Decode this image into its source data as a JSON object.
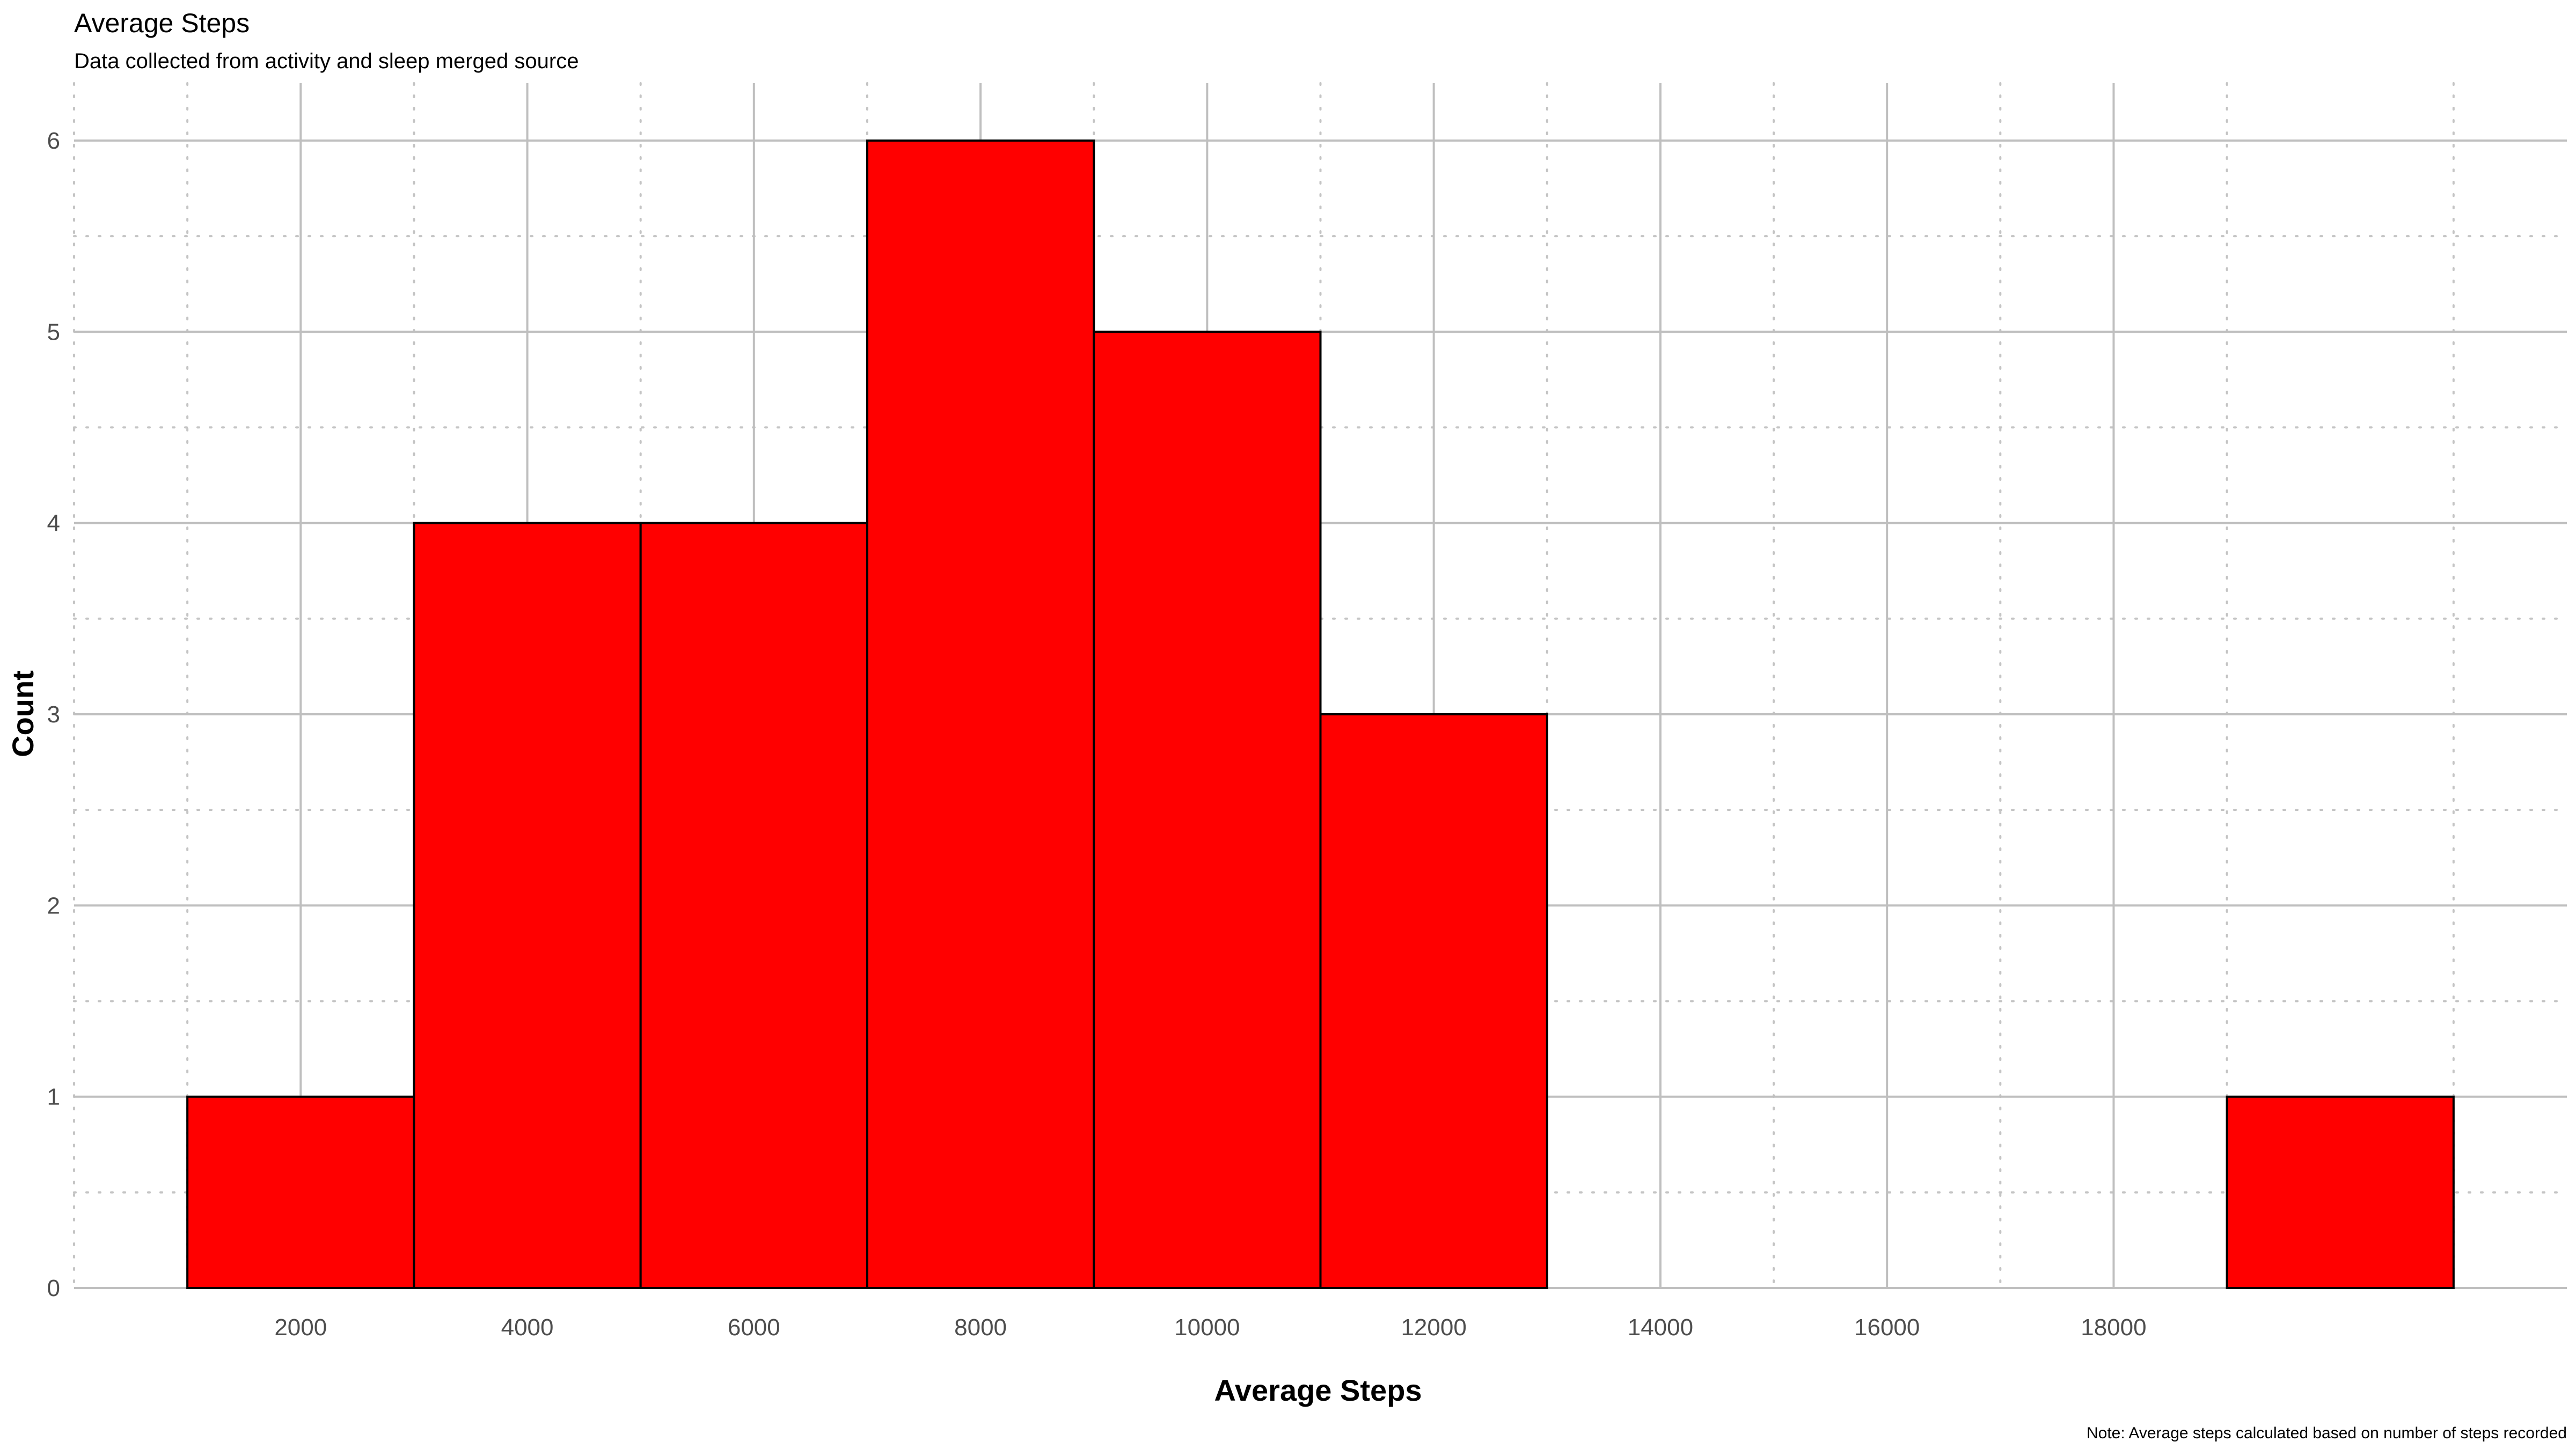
{
  "chart_data": {
    "type": "bar",
    "subtype": "histogram",
    "title": "Average Steps",
    "subtitle": "Data collected from activity and sleep merged source",
    "caption": "Note: Average steps calculated based on number of steps recorded",
    "xlabel": "Average Steps",
    "ylabel": "Count",
    "bar_color": "#ff0000",
    "bar_outline_color": "#000000",
    "bins": [
      {
        "x0": 1000,
        "x1": 3000,
        "count": 1
      },
      {
        "x0": 3000,
        "x1": 5000,
        "count": 4
      },
      {
        "x0": 5000,
        "x1": 7000,
        "count": 4
      },
      {
        "x0": 7000,
        "x1": 9000,
        "count": 6
      },
      {
        "x0": 9000,
        "x1": 11000,
        "count": 5
      },
      {
        "x0": 11000,
        "x1": 13000,
        "count": 3
      },
      {
        "x0": 13000,
        "x1": 15000,
        "count": 0
      },
      {
        "x0": 15000,
        "x1": 17000,
        "count": 0
      },
      {
        "x0": 17000,
        "x1": 19000,
        "count": 0
      },
      {
        "x0": 19000,
        "x1": 21000,
        "count": 1
      }
    ],
    "xlim": [
      0,
      22000
    ],
    "ylim": [
      0,
      6
    ],
    "x_ticks": [
      2000,
      4000,
      6000,
      8000,
      10000,
      12000,
      14000,
      16000,
      18000
    ],
    "x_minor_gridlines": [
      0,
      1000,
      3000,
      5000,
      7000,
      9000,
      11000,
      13000,
      15000,
      17000,
      19000,
      21000
    ],
    "y_ticks": [
      0,
      1,
      2,
      3,
      4,
      5,
      6
    ],
    "y_minor_gridlines": [
      0.5,
      1.5,
      2.5,
      3.5,
      4.5,
      5.5
    ],
    "grid": true,
    "legend": "none"
  }
}
